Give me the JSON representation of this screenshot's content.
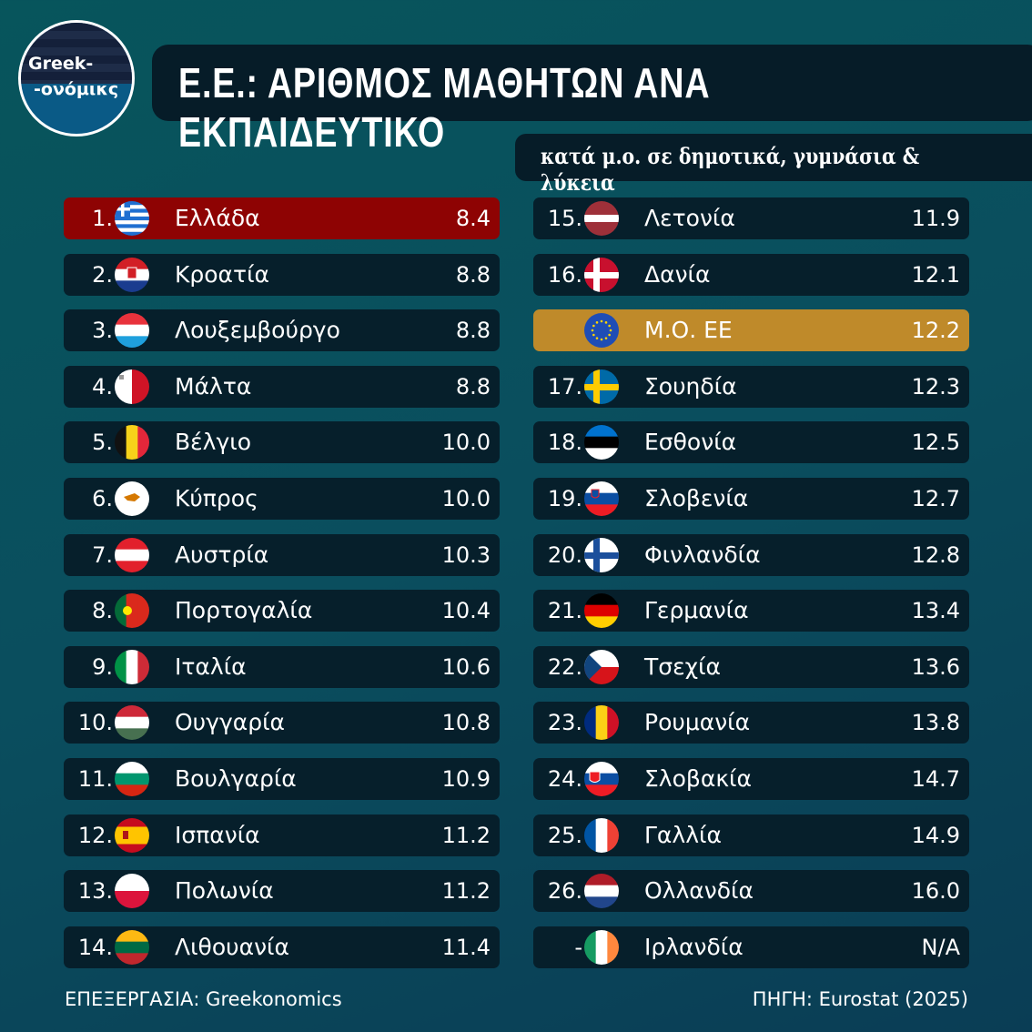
{
  "logo": {
    "line1": "Greek-",
    "line2": "-ονόμικς"
  },
  "title": "Ε.Ε.: ΑΡΙΘΜΟΣ ΜΑΘΗΤΩΝ ΑΝΑ ΕΚΠΑΙΔΕΥΤΙΚΟ",
  "subtitle": "κατά μ.ο. σε δημοτικά, γυμνάσια & λύκεια",
  "footer": {
    "left": "ΕΠΕΞΕΡΓΑΣΙΑ: Greekonomics",
    "right": "ΠΗΓΗ: Eurostat (2025)"
  },
  "colors": {
    "highlight_greece": "#8e0303",
    "highlight_eu": "#bf8a2a",
    "row": "#061f2b"
  },
  "chart_data": {
    "type": "table",
    "columns": [
      "rank",
      "country",
      "students_per_teacher"
    ],
    "rows": [
      {
        "rank": "1.",
        "country": "Ελλάδα",
        "value": "8.4",
        "flag": "gr",
        "highlight": "red"
      },
      {
        "rank": "2.",
        "country": "Κροατία",
        "value": "8.8",
        "flag": "hr"
      },
      {
        "rank": "3.",
        "country": "Λουξεμβούργο",
        "value": "8.8",
        "flag": "lu"
      },
      {
        "rank": "4.",
        "country": "Μάλτα",
        "value": "8.8",
        "flag": "mt"
      },
      {
        "rank": "5.",
        "country": "Βέλγιο",
        "value": "10.0",
        "flag": "be"
      },
      {
        "rank": "6.",
        "country": "Κύπρος",
        "value": "10.0",
        "flag": "cy"
      },
      {
        "rank": "7.",
        "country": "Αυστρία",
        "value": "10.3",
        "flag": "at"
      },
      {
        "rank": "8.",
        "country": "Πορτογαλία",
        "value": "10.4",
        "flag": "pt"
      },
      {
        "rank": "9.",
        "country": "Ιταλία",
        "value": "10.6",
        "flag": "it"
      },
      {
        "rank": "10.",
        "country": "Ουγγαρία",
        "value": "10.8",
        "flag": "hu"
      },
      {
        "rank": "11.",
        "country": "Βουλγαρία",
        "value": "10.9",
        "flag": "bg"
      },
      {
        "rank": "12.",
        "country": "Ισπανία",
        "value": "11.2",
        "flag": "es"
      },
      {
        "rank": "13.",
        "country": "Πολωνία",
        "value": "11.2",
        "flag": "pl"
      },
      {
        "rank": "14.",
        "country": "Λιθουανία",
        "value": "11.4",
        "flag": "lt"
      },
      {
        "rank": "15.",
        "country": "Λετονία",
        "value": "11.9",
        "flag": "lv"
      },
      {
        "rank": "16.",
        "country": "Δανία",
        "value": "12.1",
        "flag": "dk"
      },
      {
        "rank": "",
        "country": "Μ.Ο. ΕΕ",
        "value": "12.2",
        "flag": "eu",
        "highlight": "gold"
      },
      {
        "rank": "17.",
        "country": "Σουηδία",
        "value": "12.3",
        "flag": "se"
      },
      {
        "rank": "18.",
        "country": "Εσθονία",
        "value": "12.5",
        "flag": "ee"
      },
      {
        "rank": "19.",
        "country": "Σλοβενία",
        "value": "12.7",
        "flag": "si"
      },
      {
        "rank": "20.",
        "country": "Φινλανδία",
        "value": "12.8",
        "flag": "fi"
      },
      {
        "rank": "21.",
        "country": "Γερμανία",
        "value": "13.4",
        "flag": "de"
      },
      {
        "rank": "22.",
        "country": "Τσεχία",
        "value": "13.6",
        "flag": "cz"
      },
      {
        "rank": "23.",
        "country": "Ρουμανία",
        "value": "13.8",
        "flag": "ro"
      },
      {
        "rank": "24.",
        "country": "Σλοβακία",
        "value": "14.7",
        "flag": "sk"
      },
      {
        "rank": "25.",
        "country": "Γαλλία",
        "value": "14.9",
        "flag": "fr"
      },
      {
        "rank": "26.",
        "country": "Ολλανδία",
        "value": "16.0",
        "flag": "nl"
      },
      {
        "rank": "-",
        "country": "Ιρλανδία",
        "value": "N/A",
        "flag": "ie"
      }
    ]
  }
}
